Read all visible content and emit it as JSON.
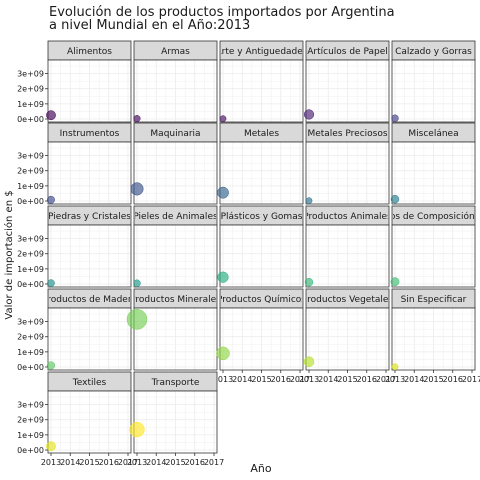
{
  "chart_data": {
    "type": "scatter",
    "title": "Evolución de los productos importados por Argentina\na nivel Mundial en el Año:2013",
    "xlabel": "Año",
    "ylabel": "Valor de importación en $",
    "xlim": [
      2013,
      2017
    ],
    "ylim": [
      0,
      3700000000
    ],
    "x_ticks": [
      "2013",
      "2014",
      "2015",
      "2016",
      "2017"
    ],
    "y_ticks": [
      "0e+00",
      "1e+09",
      "2e+09",
      "3e+09"
    ],
    "y_tick_values": [
      0,
      1000000000,
      2000000000,
      3000000000
    ],
    "grid": true,
    "legend": "none",
    "panels": [
      {
        "name": "Alimentos",
        "x": 2013,
        "y": 250000000,
        "color": "#440154"
      },
      {
        "name": "Armas",
        "x": 2013,
        "y": 30000000,
        "color": "#46085c"
      },
      {
        "name": "Arte y Antiguedades",
        "x": 2013,
        "y": 20000000,
        "color": "#471063"
      },
      {
        "name": "Artículos de Papel",
        "x": 2013,
        "y": 300000000,
        "color": "#482173"
      },
      {
        "name": "Calzado y Gorras",
        "x": 2013,
        "y": 50000000,
        "color": "#433e85"
      },
      {
        "name": "Instrumentos",
        "x": 2013,
        "y": 80000000,
        "color": "#3e4989"
      },
      {
        "name": "Maquinaria",
        "x": 2013,
        "y": 800000000,
        "color": "#3b528b"
      },
      {
        "name": "Metales",
        "x": 2013,
        "y": 550000000,
        "color": "#33638d"
      },
      {
        "name": "Metales Preciosos",
        "x": 2013,
        "y": 20000000,
        "color": "#2c728e"
      },
      {
        "name": "Miscelánea",
        "x": 2013,
        "y": 120000000,
        "color": "#287d8e"
      },
      {
        "name": "Piedras y Cristales",
        "x": 2013,
        "y": 60000000,
        "color": "#21908d"
      },
      {
        "name": "Pieles de Animales",
        "x": 2013,
        "y": 50000000,
        "color": "#1f9a8a"
      },
      {
        "name": "Plásticos y Gomas",
        "x": 2013,
        "y": 450000000,
        "color": "#27ad81"
      },
      {
        "name": "Productos Animales",
        "x": 2013,
        "y": 120000000,
        "color": "#35b779"
      },
      {
        "name": "Productos de Composición Vegetal",
        "x": 2013,
        "y": 150000000,
        "color": "#3fbc73"
      },
      {
        "name": "Productos de Madera",
        "x": 2013,
        "y": 100000000,
        "color": "#5ec962"
      },
      {
        "name": "Productos Minerales",
        "x": 2013,
        "y": 3150000000,
        "color": "#75d054"
      },
      {
        "name": "Productos Químicos",
        "x": 2013,
        "y": 900000000,
        "color": "#90d743"
      },
      {
        "name": "Productos Vegetales",
        "x": 2013,
        "y": 350000000,
        "color": "#b5de2b"
      },
      {
        "name": "Sin Especificar",
        "x": 2013,
        "y": 20000000,
        "color": "#d8e219"
      },
      {
        "name": "Textiles",
        "x": 2013,
        "y": 250000000,
        "color": "#e5e419"
      },
      {
        "name": "Transporte",
        "x": 2013,
        "y": 1350000000,
        "color": "#fde725"
      }
    ]
  }
}
